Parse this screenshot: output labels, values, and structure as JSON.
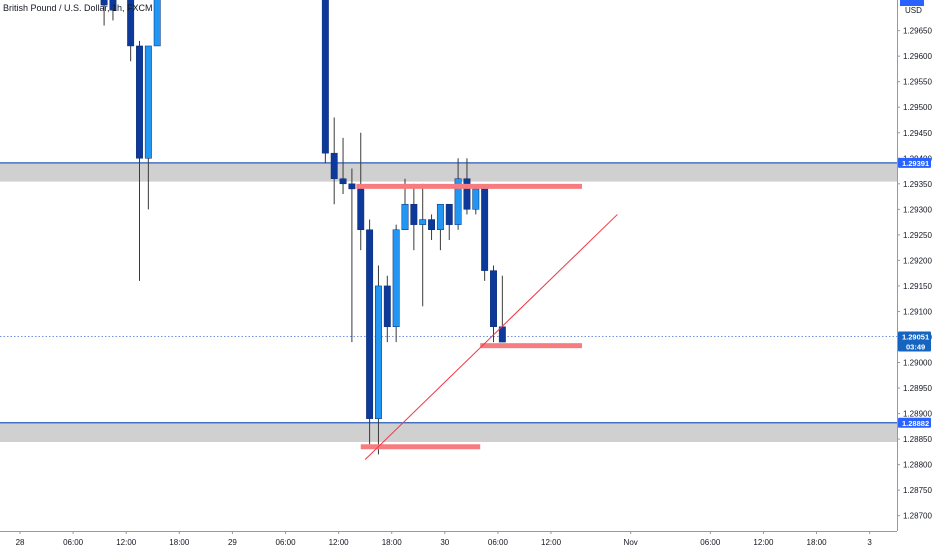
{
  "title": "British Pound / U.S. Dollar, 1h, FXCM",
  "currency": "USD",
  "colors": {
    "bull": "#2196f3",
    "bear": "#0d3a9a",
    "wick": "#3a3a3a",
    "zone_fill": "#c8c8c8",
    "zone_line": "#2a5cb8",
    "marker": "#f77c80",
    "trendline": "#f23645",
    "price_tag": "#2962ff",
    "current_tag": "#1565c0",
    "axis_line": "#999999",
    "dotted_price": "#4a6fd8"
  },
  "chart_data": {
    "type": "candlestick",
    "title": "British Pound / U.S. Dollar, 1h, FXCM",
    "ylim": [
      1.2867,
      1.2971
    ],
    "y_ticks": [
      "1.29650",
      "1.29600",
      "1.29550",
      "1.29500",
      "1.29450",
      "1.29400",
      "1.29350",
      "1.29300",
      "1.29250",
      "1.29200",
      "1.29150",
      "1.29100",
      "1.29050",
      "1.29000",
      "1.28950",
      "1.28900",
      "1.28850",
      "1.28800",
      "1.28750",
      "1.28700"
    ],
    "x_ticks": [
      {
        "label": "28",
        "index": -13.5
      },
      {
        "label": "06:00",
        "index": -7.5
      },
      {
        "label": "12:00",
        "index": -1.5
      },
      {
        "label": "18:00",
        "index": 4.5
      },
      {
        "label": "29",
        "index": 10.5
      },
      {
        "label": "06:00",
        "index": 16.5
      },
      {
        "label": "12:00",
        "index": 22.5
      },
      {
        "label": "18:00",
        "index": 28.5
      },
      {
        "label": "30",
        "index": 34.5
      },
      {
        "label": "06:00",
        "index": 40.5
      },
      {
        "label": "12:00",
        "index": 46.5
      },
      {
        "label": "Nov",
        "index": 55.5
      },
      {
        "label": "06:00",
        "index": 64.5
      },
      {
        "label": "12:00",
        "index": 70.5
      },
      {
        "label": "18:00",
        "index": 76.5
      },
      {
        "label": "3",
        "index": 82.5
      }
    ],
    "candles": [
      {
        "i": -4,
        "o": 1.2985,
        "h": 1.299,
        "l": 1.2966,
        "c": 1.297
      },
      {
        "i": -3,
        "o": 1.2985,
        "h": 1.299,
        "l": 1.2967,
        "c": 1.2969
      },
      {
        "i": -1,
        "o": 1.2985,
        "h": 1.299,
        "l": 1.2959,
        "c": 1.2962
      },
      {
        "i": 0,
        "o": 1.2962,
        "h": 1.2963,
        "l": 1.2916,
        "c": 1.294
      },
      {
        "i": 1,
        "o": 1.294,
        "h": 1.2962,
        "l": 1.293,
        "c": 1.2962
      },
      {
        "i": 2,
        "o": 1.2962,
        "h": 1.299,
        "l": 1.2962,
        "c": 1.2985
      },
      {
        "i": 21,
        "o": 1.2985,
        "h": 1.299,
        "l": 1.2939,
        "c": 1.2941
      },
      {
        "i": 22,
        "o": 1.2941,
        "h": 1.2948,
        "l": 1.2931,
        "c": 1.2936
      },
      {
        "i": 23,
        "o": 1.2936,
        "h": 1.2944,
        "l": 1.2933,
        "c": 1.2935
      },
      {
        "i": 24,
        "o": 1.2935,
        "h": 1.2938,
        "l": 1.2904,
        "c": 1.2934
      },
      {
        "i": 25,
        "o": 1.2934,
        "h": 1.2945,
        "l": 1.2922,
        "c": 1.2926
      },
      {
        "i": 26,
        "o": 1.2926,
        "h": 1.2928,
        "l": 1.2884,
        "c": 1.2889
      },
      {
        "i": 27,
        "o": 1.2889,
        "h": 1.2919,
        "l": 1.2882,
        "c": 1.2915
      },
      {
        "i": 28,
        "o": 1.2915,
        "h": 1.2917,
        "l": 1.2904,
        "c": 1.2907
      },
      {
        "i": 29,
        "o": 1.2907,
        "h": 1.2927,
        "l": 1.2904,
        "c": 1.2926
      },
      {
        "i": 30,
        "o": 1.2926,
        "h": 1.2936,
        "l": 1.2926,
        "c": 1.2931
      },
      {
        "i": 31,
        "o": 1.2931,
        "h": 1.2935,
        "l": 1.2922,
        "c": 1.2927
      },
      {
        "i": 32,
        "o": 1.2927,
        "h": 1.2935,
        "l": 1.2911,
        "c": 1.2928
      },
      {
        "i": 33,
        "o": 1.2928,
        "h": 1.2929,
        "l": 1.2924,
        "c": 1.2926
      },
      {
        "i": 34,
        "o": 1.2926,
        "h": 1.2931,
        "l": 1.2922,
        "c": 1.2931
      },
      {
        "i": 35,
        "o": 1.2931,
        "h": 1.2931,
        "l": 1.2924,
        "c": 1.2927
      },
      {
        "i": 36,
        "o": 1.2927,
        "h": 1.294,
        "l": 1.2926,
        "c": 1.2936
      },
      {
        "i": 37,
        "o": 1.2936,
        "h": 1.294,
        "l": 1.2929,
        "c": 1.293
      },
      {
        "i": 38,
        "o": 1.293,
        "h": 1.2934,
        "l": 1.2929,
        "c": 1.2934
      },
      {
        "i": 39,
        "o": 1.2934,
        "h": 1.2934,
        "l": 1.2916,
        "c": 1.2918
      },
      {
        "i": 40,
        "o": 1.2918,
        "h": 1.2919,
        "l": 1.2904,
        "c": 1.2907
      },
      {
        "i": 41,
        "o": 1.2907,
        "h": 1.2917,
        "l": 1.2904,
        "c": 1.2904
      }
    ],
    "zones": [
      {
        "top": 1.29391,
        "bottom": 1.2937
      },
      {
        "top": 1.28882,
        "bottom": 1.2886
      }
    ],
    "markers": [
      {
        "price": 1.29345,
        "from_i": 24.5,
        "to_i": 50
      },
      {
        "price": 1.29033,
        "from_i": 38.5,
        "to_i": 50
      },
      {
        "price": 1.28835,
        "from_i": 25,
        "to_i": 38.5
      }
    ],
    "trendline": {
      "from_i": 25.5,
      "from_price": 1.2881,
      "to_i": 54,
      "to_price": 1.2929
    },
    "current_price": 1.29051,
    "price_tags": [
      {
        "label": "1.29391",
        "price": 1.29391
      },
      {
        "label": "1.29051",
        "price": 1.29051,
        "sub": "03:49"
      },
      {
        "label": "1.28882",
        "price": 1.28882
      }
    ]
  }
}
